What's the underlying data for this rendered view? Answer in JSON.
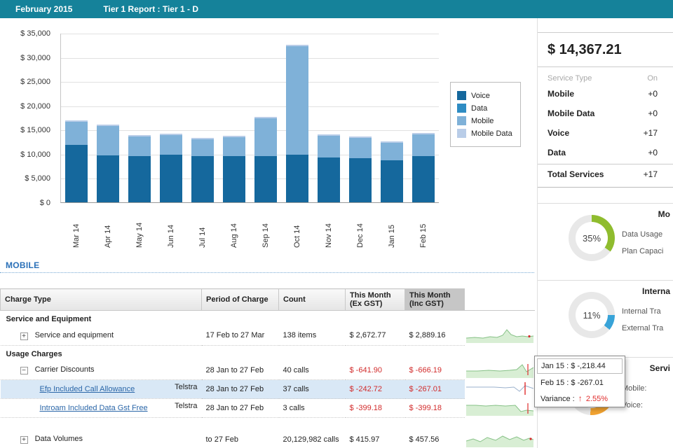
{
  "header": {
    "month": "February 2015",
    "report_title": "Tier 1 Report : Tier 1 - D"
  },
  "colors": {
    "header_bar": "#15829a",
    "link": "#2a66a8",
    "negative": "#d22c2c"
  },
  "chart_data": {
    "type": "bar",
    "stacked": true,
    "categories": [
      "Mar 14",
      "Apr 14",
      "May 14",
      "Jun 14",
      "Jul 14",
      "Aug 14",
      "Sep 14",
      "Oct 14",
      "Nov 14",
      "Dec 14",
      "Jan 15",
      "Feb 15"
    ],
    "series": [
      {
        "name": "Voice",
        "color": "#15689d",
        "values": [
          11800,
          9700,
          9500,
          9900,
          9600,
          9500,
          9600,
          9800,
          9200,
          9100,
          8700,
          9600
        ]
      },
      {
        "name": "Data",
        "color": "#2e8cc3",
        "values": [
          0,
          0,
          0,
          0,
          0,
          0,
          0,
          0,
          0,
          0,
          0,
          0
        ]
      },
      {
        "name": "Mobile",
        "color": "#7fb1d8",
        "values": [
          4800,
          6100,
          4100,
          4000,
          3400,
          4000,
          7700,
          22500,
          4500,
          4200,
          3600,
          4400
        ]
      },
      {
        "name": "Mobile Data",
        "color": "#b9cde8",
        "values": [
          300,
          300,
          300,
          300,
          300,
          300,
          300,
          300,
          300,
          300,
          300,
          300
        ]
      }
    ],
    "ylim": [
      0,
      35000
    ],
    "y_ticks": [
      "$ 35,000",
      "$ 30,000",
      "$ 25,000",
      "$ 20,000",
      "$ 15,000",
      "$ 10,000",
      "$ 5,000",
      "$ 0"
    ],
    "grid": "horizontal",
    "legend_position": "right"
  },
  "panel": {
    "total_amount": "$ 14,367.21",
    "summary": {
      "col_headers": [
        "Service Type",
        "On"
      ],
      "rows": [
        {
          "label": "Mobile",
          "value": "+0"
        },
        {
          "label": "Mobile Data",
          "value": "+0"
        },
        {
          "label": "Voice",
          "value": "+17"
        },
        {
          "label": "Data",
          "value": "+0"
        },
        {
          "label": "Total Services",
          "value": "+17"
        }
      ]
    },
    "gauges": [
      {
        "header": "Mo",
        "percent": 35,
        "percent_label": "35%",
        "color": "#8fbc2e",
        "start_deg": 0,
        "labels": [
          "Data Usage",
          "Plan Capaci"
        ]
      },
      {
        "header": "Interna",
        "percent": 11,
        "percent_label": "11%",
        "color": "#38a3d8",
        "start_deg": 90,
        "labels": [
          "Internal Tra",
          "External Tra"
        ]
      },
      {
        "header": "Servi",
        "percent": 26,
        "percent_label": "26%",
        "color": "#f2a331",
        "start_deg": 90,
        "labels": [
          "Mobile:",
          "Voice:"
        ]
      }
    ]
  },
  "icons": {
    "expand": "+",
    "collapse": "−"
  },
  "mobile": {
    "heading": "MOBILE",
    "table": {
      "headers": [
        "Charge Type",
        "Period of Charge",
        "Count",
        "This Month (Ex GST)",
        "This Month (Inc GST)"
      ],
      "sections": [
        "Service and Equipment",
        "Usage Charges"
      ],
      "rows": [
        {
          "charge_type": "Service and equipment",
          "carrier": "",
          "period": "17 Feb to 27 Mar",
          "count": "138 items",
          "ex_gst": "$ 2,672.77",
          "inc_gst": "$ 2,889.16"
        },
        {
          "charge_type": "Carrier Discounts",
          "carrier": "",
          "period": "28 Jan to 27 Feb",
          "count": "40 calls",
          "ex_gst": "$ -641.90",
          "inc_gst": "$ -666.19"
        },
        {
          "charge_type": "Efp Included Call Allowance",
          "carrier": "Telstra",
          "period": "28 Jan to 27 Feb",
          "count": "37 calls",
          "ex_gst": "$ -242.72",
          "inc_gst": "$ -267.01"
        },
        {
          "charge_type": "Introam Included Data Gst Free",
          "carrier": "Telstra",
          "period": "28 Jan to 27 Feb",
          "count": "3 calls",
          "ex_gst": "$ -399.18",
          "inc_gst": "$ -399.18"
        },
        {
          "charge_type": "Data Volumes",
          "carrier": "",
          "period": "to 27 Feb",
          "count": "20,129,982 calls",
          "ex_gst": "$ 415.97",
          "inc_gst": "$ 457.56"
        }
      ]
    }
  },
  "tooltip": {
    "line1": "Jan 15 : $ -,218.44",
    "line2": "Feb 15 : $ -267.01",
    "variance_label": "Variance :",
    "arrow": "↑",
    "variance_value": "2.55%"
  }
}
